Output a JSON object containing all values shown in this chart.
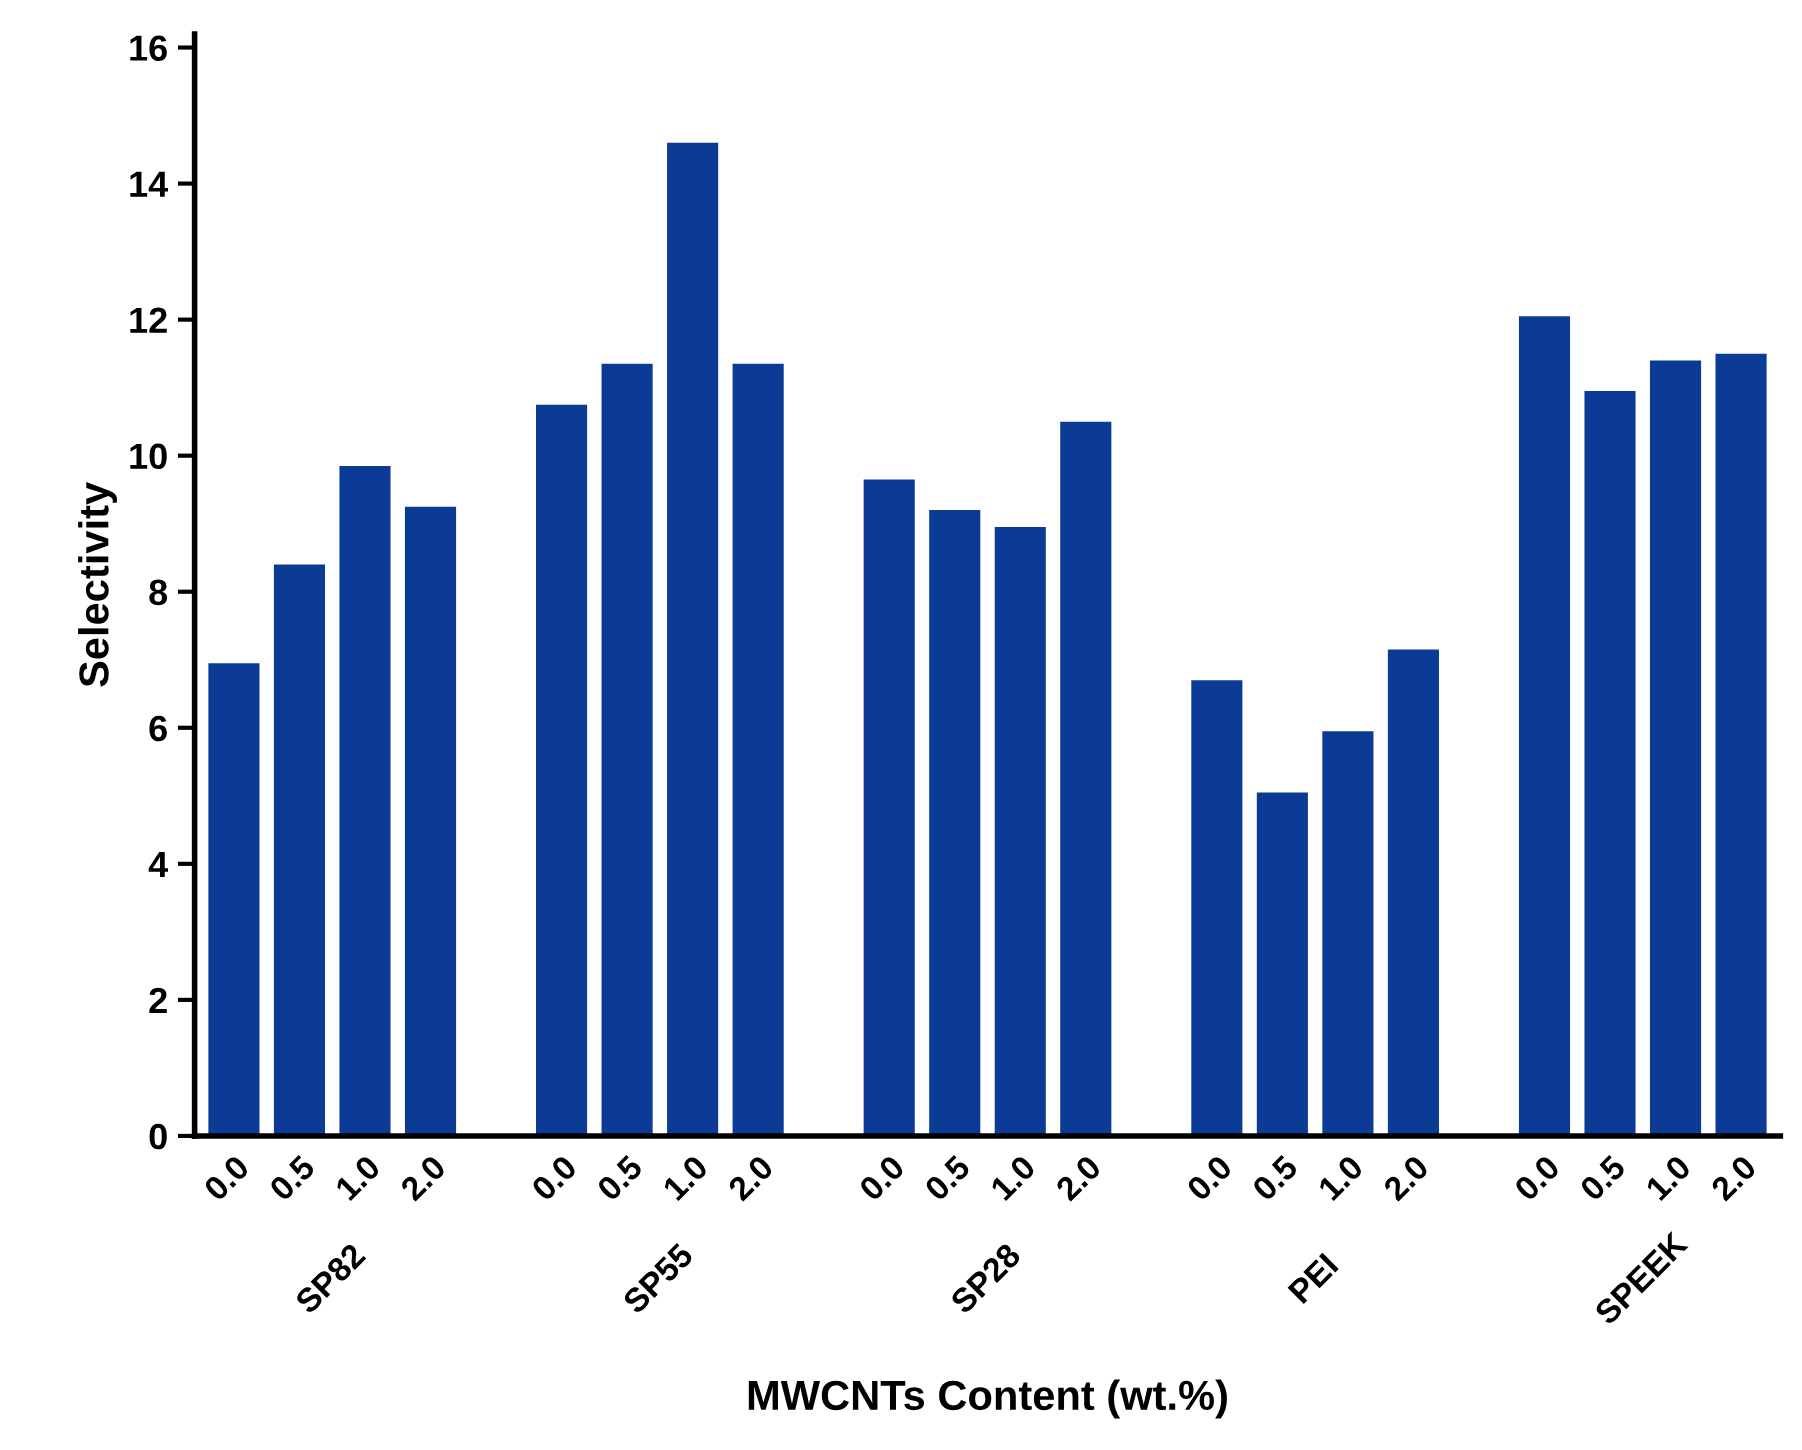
{
  "chart_data": {
    "type": "bar",
    "ylabel": "Selectivity",
    "xlabel": "MWCNTs Content (wt.%)",
    "categories": [
      "0.0",
      "0.5",
      "1.0",
      "2.0",
      null,
      "0.0",
      "0.5",
      "1.0",
      "2.0",
      null,
      "0.0",
      "0.5",
      "1.0",
      "2.0",
      null,
      "0.0",
      "0.5",
      "1.0",
      "2.0",
      null,
      "0.0",
      "0.5",
      "1.0",
      "2.0"
    ],
    "values": [
      6.95,
      8.4,
      9.85,
      9.25,
      null,
      10.75,
      11.35,
      14.6,
      11.35,
      null,
      9.65,
      9.2,
      8.95,
      10.5,
      null,
      6.7,
      5.05,
      5.95,
      7.15,
      null,
      12.05,
      10.95,
      11.4,
      11.5
    ],
    "color": "#0b3b95",
    "annotations": [
      "SP82",
      "SP55",
      "SP28",
      "PEI",
      "SPEEK"
    ],
    "ylim": [
      0,
      16.2
    ],
    "yticks": [
      0,
      2,
      4,
      6,
      8,
      10,
      12,
      14,
      16
    ],
    "grid": false,
    "legend": false
  }
}
